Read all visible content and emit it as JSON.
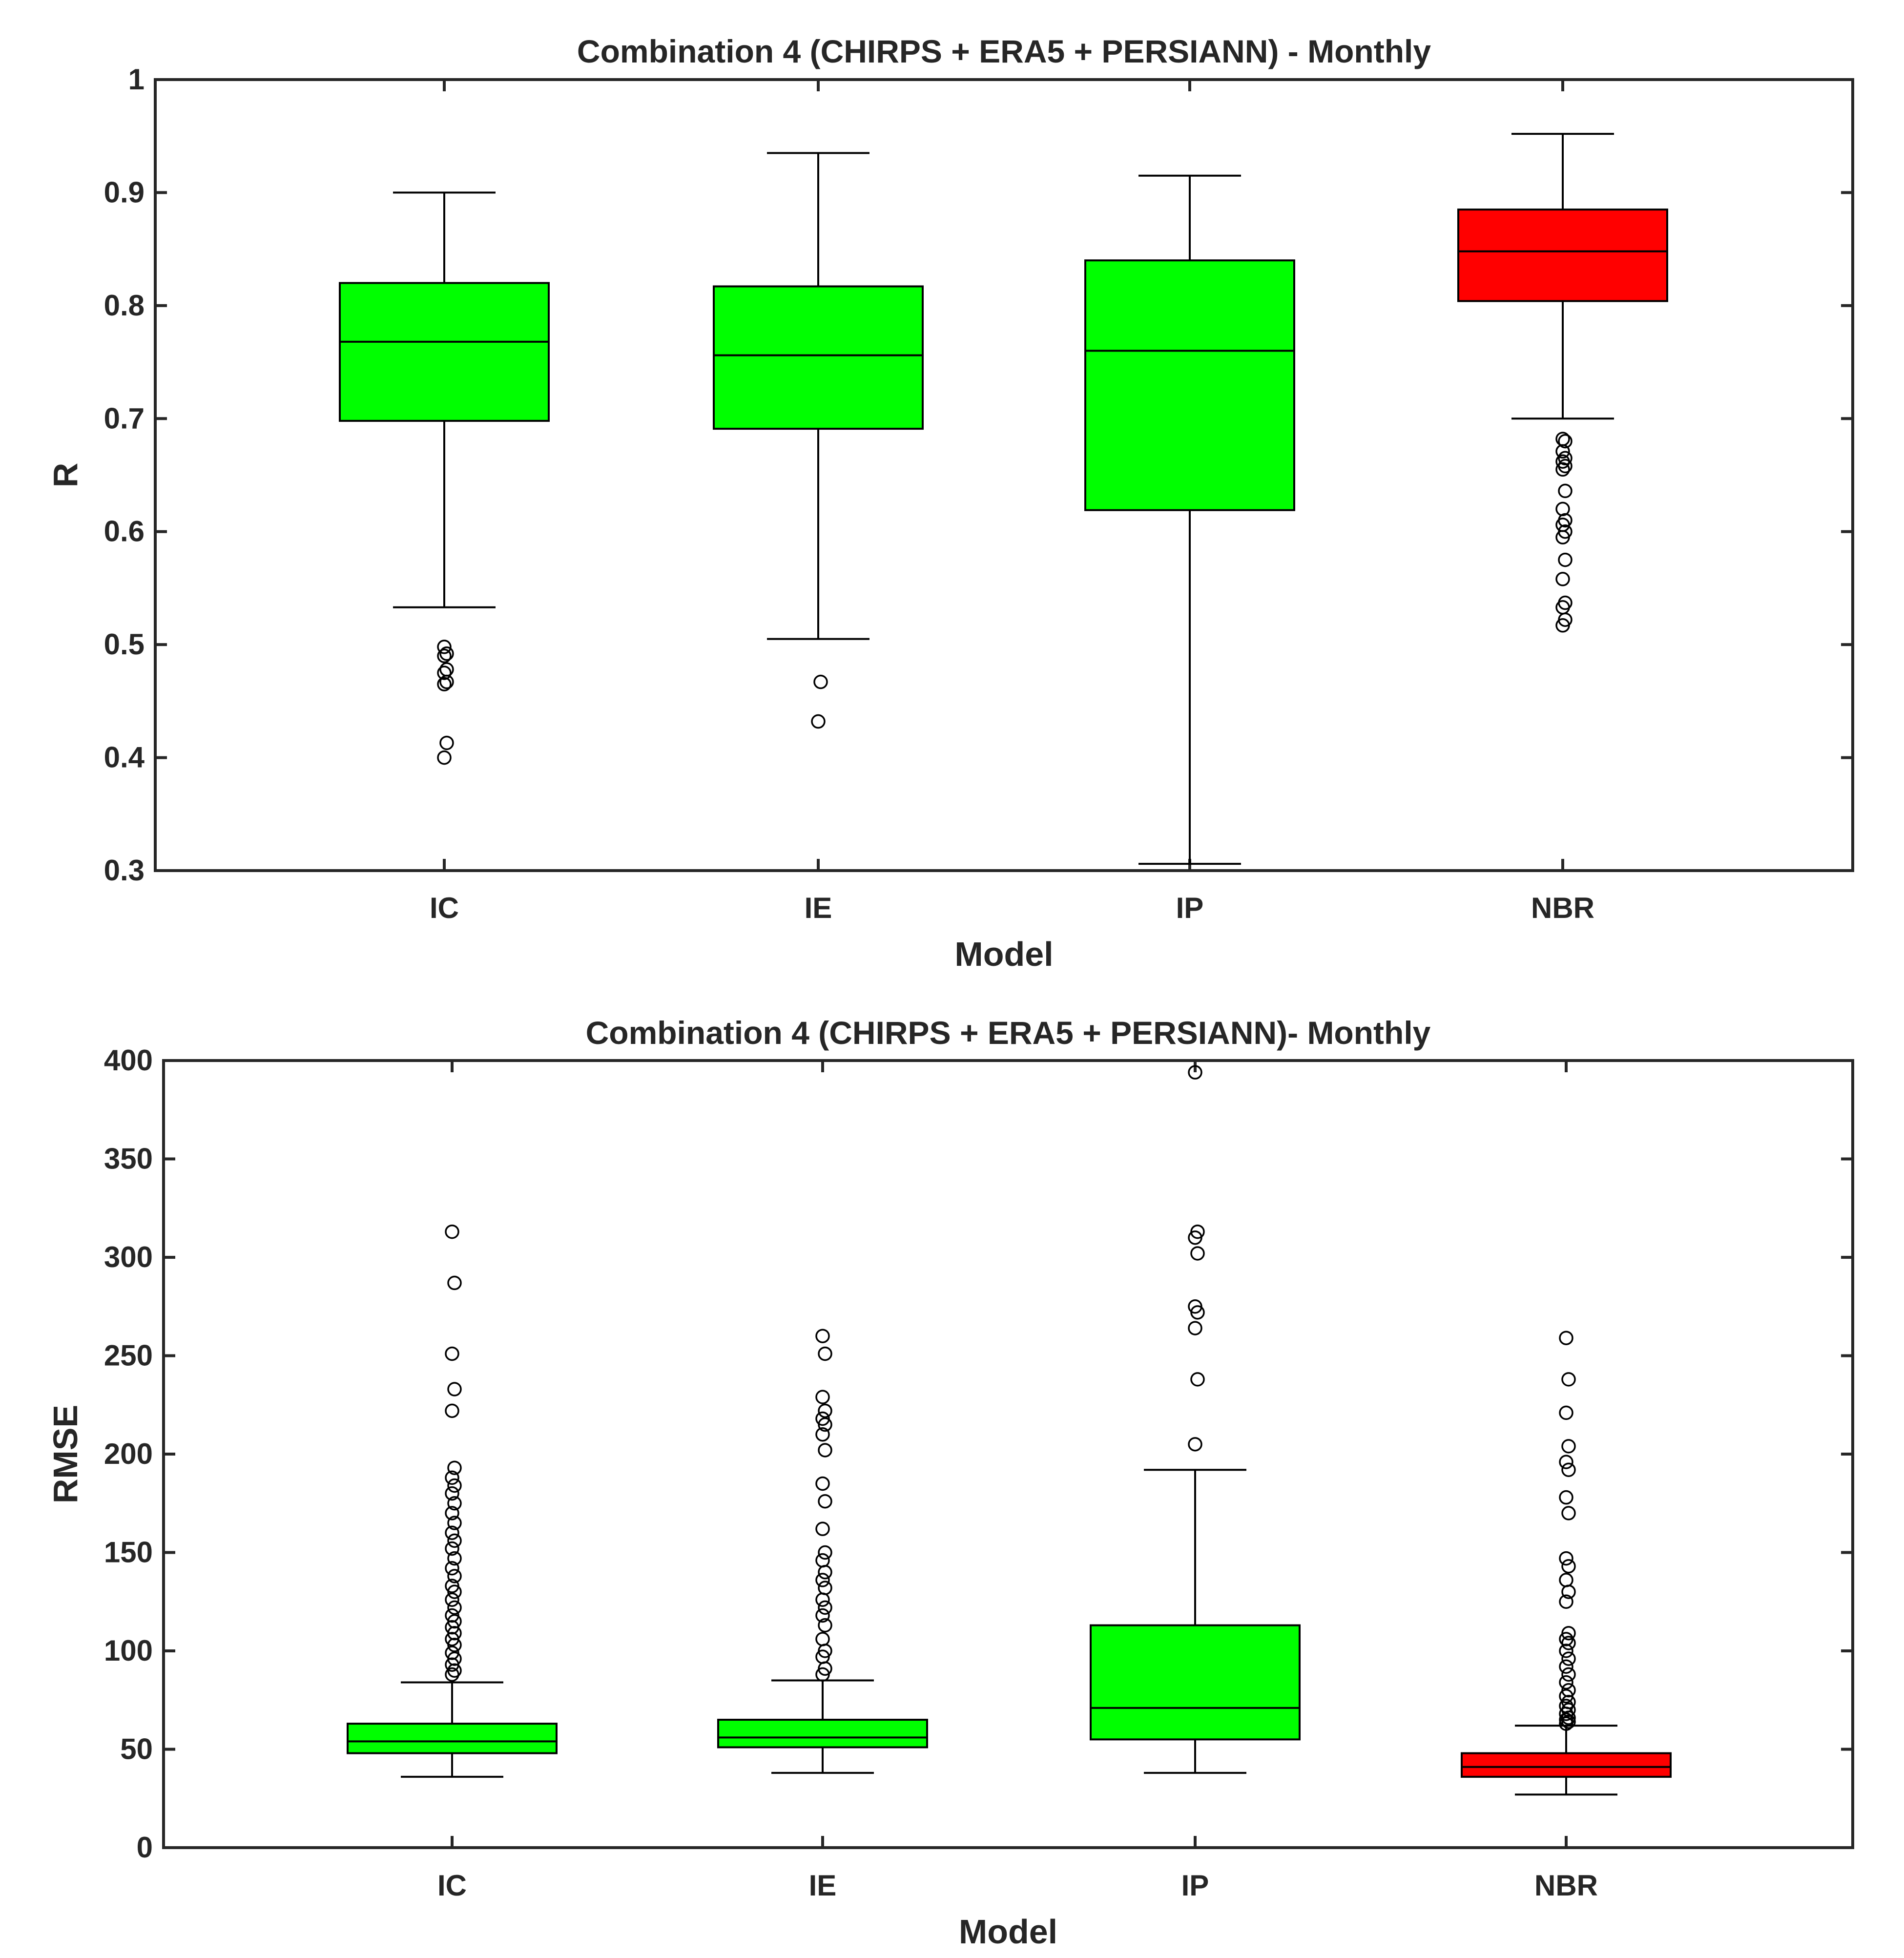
{
  "chart_data": [
    {
      "type": "boxplot",
      "title": "Combination 4 (CHIRPS + ERA5 + PERSIANN) - Monthly",
      "xlabel": "Model",
      "ylabel": "R",
      "ylim": [
        0.3,
        1
      ],
      "yticks": [
        "0.3",
        "0.4",
        "0.5",
        "0.6",
        "0.7",
        "0.8",
        "0.9",
        "1"
      ],
      "categories": [
        "IC",
        "IE",
        "IP",
        "NBR"
      ],
      "boxes": [
        {
          "name": "IC",
          "color": "#00ff00",
          "whisker_low": 0.533,
          "q1": 0.698,
          "median": 0.768,
          "q3": 0.82,
          "whisker_high": 0.9,
          "outliers": [
            0.4,
            0.413,
            0.465,
            0.467,
            0.475,
            0.478,
            0.49,
            0.492,
            0.498
          ]
        },
        {
          "name": "IE",
          "color": "#00ff00",
          "whisker_low": 0.505,
          "q1": 0.691,
          "median": 0.756,
          "q3": 0.817,
          "whisker_high": 0.935,
          "outliers": [
            0.432,
            0.467
          ]
        },
        {
          "name": "IP",
          "color": "#00ff00",
          "whisker_low": 0.306,
          "q1": 0.619,
          "median": 0.76,
          "q3": 0.84,
          "whisker_high": 0.915,
          "outliers": []
        },
        {
          "name": "NBR",
          "color": "#ff0000",
          "whisker_low": 0.7,
          "q1": 0.804,
          "median": 0.848,
          "q3": 0.885,
          "whisker_high": 0.952,
          "outliers": [
            0.517,
            0.522,
            0.533,
            0.537,
            0.558,
            0.575,
            0.595,
            0.6,
            0.606,
            0.61,
            0.62,
            0.636,
            0.655,
            0.658,
            0.662,
            0.665,
            0.671,
            0.68,
            0.682
          ]
        }
      ]
    },
    {
      "type": "boxplot",
      "title": "Combination 4 (CHIRPS + ERA5 + PERSIANN)- Monthly",
      "xlabel": "Model",
      "ylabel": "RMSE",
      "ylim": [
        0,
        400
      ],
      "yticks": [
        "0",
        "50",
        "100",
        "150",
        "200",
        "250",
        "300",
        "350",
        "400"
      ],
      "categories": [
        "IC",
        "IE",
        "IP",
        "NBR"
      ],
      "boxes": [
        {
          "name": "IC",
          "color": "#00ff00",
          "whisker_low": 36,
          "q1": 48,
          "median": 54,
          "q3": 63,
          "whisker_high": 84,
          "outliers": [
            88,
            90,
            93,
            96,
            99,
            103,
            106,
            109,
            112,
            115,
            118,
            122,
            126,
            130,
            133,
            138,
            142,
            147,
            152,
            156,
            160,
            165,
            170,
            175,
            180,
            184,
            188,
            193,
            222,
            233,
            251,
            287,
            313
          ]
        },
        {
          "name": "IE",
          "color": "#00ff00",
          "whisker_low": 38,
          "q1": 51,
          "median": 56,
          "q3": 65,
          "whisker_high": 85,
          "outliers": [
            88,
            91,
            97,
            100,
            106,
            113,
            118,
            122,
            126,
            132,
            136,
            140,
            146,
            150,
            162,
            176,
            185,
            202,
            210,
            215,
            218,
            222,
            229,
            251,
            260
          ]
        },
        {
          "name": "IP",
          "color": "#00ff00",
          "whisker_low": 38,
          "q1": 55,
          "median": 71,
          "q3": 113,
          "whisker_high": 192,
          "outliers": [
            205,
            238,
            264,
            272,
            275,
            302,
            310,
            313,
            394
          ]
        },
        {
          "name": "NBR",
          "color": "#ff0000",
          "whisker_low": 27,
          "q1": 36,
          "median": 41,
          "q3": 48,
          "whisker_high": 62,
          "outliers": [
            63,
            64,
            65,
            66,
            68,
            70,
            72,
            74,
            77,
            80,
            84,
            88,
            92,
            96,
            100,
            104,
            106,
            109,
            125,
            130,
            136,
            143,
            147,
            170,
            178,
            192,
            196,
            204,
            221,
            238,
            259
          ]
        }
      ]
    }
  ]
}
